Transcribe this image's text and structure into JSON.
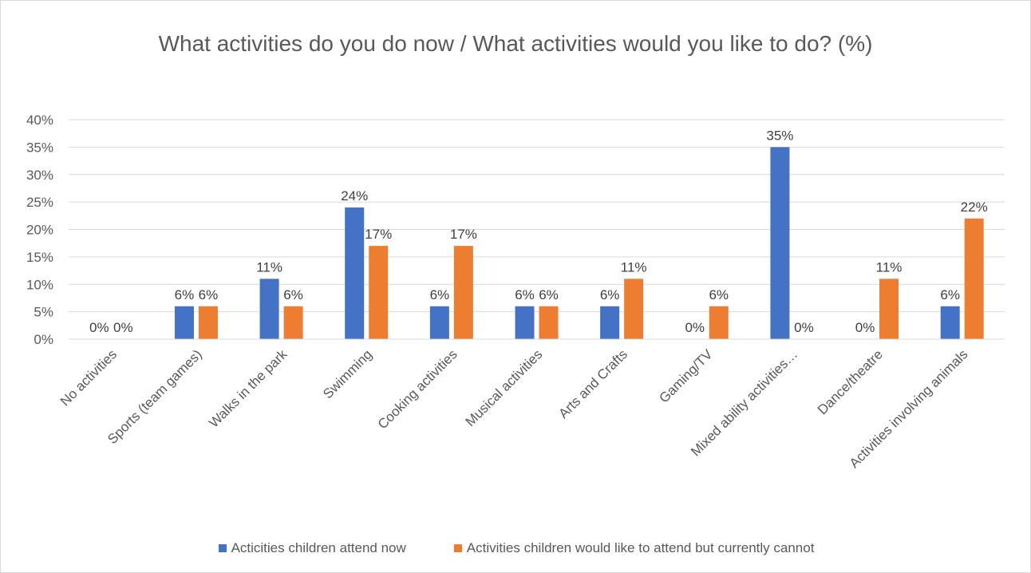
{
  "chart_data": {
    "type": "bar",
    "title": "What activities do you do now / What activities would you like to do? (%)",
    "categories": [
      "No activities",
      "Sports (team games)",
      "Walks in the park",
      "Swimming",
      "Cooking activities",
      "Musical activities",
      "Arts and Crafts",
      "Gaming/TV",
      "Mixed ability activities…",
      "Dance/theatre",
      "Activities involving animals"
    ],
    "series": [
      {
        "name": "Acticities children attend now",
        "color": "#4472c4",
        "values": [
          0,
          6,
          11,
          24,
          6,
          6,
          6,
          0,
          35,
          0,
          6
        ]
      },
      {
        "name": "Activities children would like to attend but currently cannot",
        "color": "#ed7d31",
        "values": [
          0,
          6,
          6,
          17,
          17,
          6,
          11,
          6,
          0,
          11,
          22
        ]
      }
    ],
    "ylim": [
      0,
      40
    ],
    "yticks": [
      0,
      5,
      10,
      15,
      20,
      25,
      30,
      35,
      40
    ],
    "ytick_labels": [
      "0%",
      "5%",
      "10%",
      "15%",
      "20%",
      "25%",
      "30%",
      "35%",
      "40%"
    ],
    "value_suffix": "%",
    "grid": true,
    "legend_position": "bottom",
    "gridline_color": "#d9d9d9"
  }
}
